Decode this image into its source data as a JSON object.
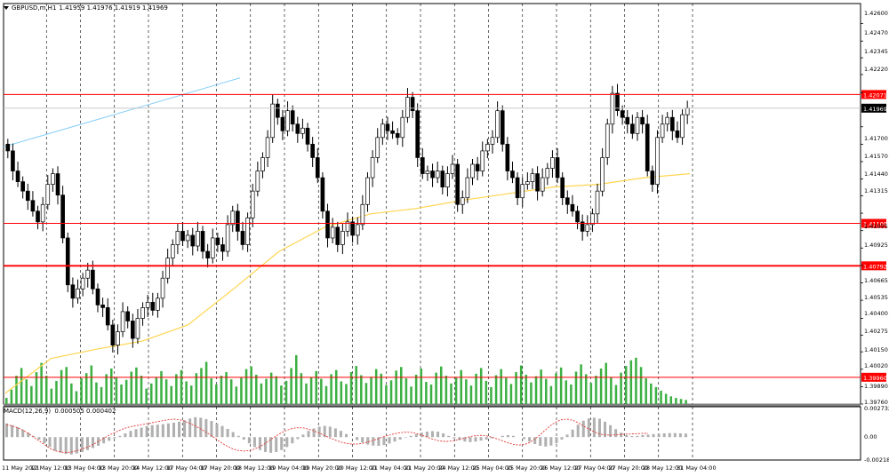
{
  "window": {
    "symbol": "GBPUSD,m,H1",
    "ohlc": "1.41959 1.41976 1.41919 1.41969"
  },
  "macd_panel": {
    "label": "MACD(12,26,9)",
    "values": "0.000505 0.000402",
    "scale_labels": [
      "0.002732",
      "0.00",
      "-0.002188"
    ]
  },
  "colors": {
    "background": "#ffffff",
    "bull_candle": "#000000",
    "bear_candle": "#000000",
    "level_line": "#ff0000",
    "ma_line": "#ffd54f",
    "trend_line": "#87cefa",
    "volume": "#3cb043",
    "macd_hist": "#b0b0b0",
    "macd_signal": "#e53935",
    "grid": "#000000"
  },
  "chart_data": {
    "type": "candlestick",
    "ylim": [
      1.3976,
      1.4275
    ],
    "price_labels": [
      "1.42600",
      "1.42470",
      "1.42345",
      "1.42220",
      "1.42071",
      "1.41969",
      "1.41700",
      "1.41570",
      "1.41440",
      "1.41315",
      "1.41109",
      "1.41055",
      "1.40925",
      "1.40792",
      "1.40665",
      "1.40535",
      "1.40400",
      "1.40275",
      "1.40150",
      "1.40020",
      "1.39960",
      "1.39890",
      "1.39760"
    ],
    "price_ticks": [
      1.426,
      1.4247,
      1.42345,
      1.4222,
      1.42085,
      1.4183,
      1.417,
      1.4157,
      1.4144,
      1.41315,
      1.41185,
      1.41055,
      1.40925,
      1.40795,
      1.40665,
      1.40535,
      1.404,
      1.40275,
      1.4015,
      1.4002,
      1.3989,
      1.3976
    ],
    "time_labels": [
      "11 May 2021",
      "12 May 12:00",
      "13 May 04:00",
      "13 May 20:00",
      "14 May 12:00",
      "17 May 04:00",
      "17 May 20:00",
      "18 May 12:00",
      "19 May 04:00",
      "19 May 20:00",
      "20 May 12:00",
      "21 May 04:00",
      "21 May 20:00",
      "24 May 12:00",
      "25 May 04:00",
      "25 May 20:00",
      "26 May 12:00",
      "27 May 04:00",
      "27 May 20:00",
      "28 May 12:00",
      "31 May 04:00"
    ],
    "levels": [
      {
        "label": "1.42071",
        "value": 1.42071,
        "bold": false
      },
      {
        "label": "1.41109",
        "value": 1.41109,
        "bold": false
      },
      {
        "label": "1.40792",
        "value": 1.40792,
        "bold": true
      },
      {
        "label": "1.39960",
        "value": 1.3996,
        "bold": false
      }
    ],
    "current_price": {
      "label": "1.41969",
      "value": 1.41969
    },
    "closes": [
      1.4165,
      1.415,
      1.4142,
      1.4135,
      1.4128,
      1.412,
      1.4112,
      1.4125,
      1.414,
      1.4148,
      1.4132,
      1.41,
      1.4065,
      1.4055,
      1.4062,
      1.407,
      1.4076,
      1.4062,
      1.405,
      1.4048,
      1.4035,
      1.402,
      1.403,
      1.4045,
      1.4038,
      1.4025,
      1.404,
      1.4048,
      1.4052,
      1.4046,
      1.4055,
      1.407,
      1.4085,
      1.4095,
      1.4105,
      1.4098,
      1.4102,
      1.4094,
      1.4105,
      1.409,
      1.4085,
      1.41,
      1.4095,
      1.409,
      1.411,
      1.412,
      1.4105,
      1.4095,
      1.4115,
      1.4135,
      1.415,
      1.416,
      1.4175,
      1.42,
      1.419,
      1.418,
      1.4195,
      1.4185,
      1.4178,
      1.4182,
      1.417,
      1.416,
      1.4145,
      1.412,
      1.41,
      1.4108,
      1.4095,
      1.4105,
      1.4112,
      1.4102,
      1.411,
      1.4125,
      1.4145,
      1.416,
      1.4175,
      1.4185,
      1.418,
      1.4178,
      1.4175,
      1.419,
      1.4205,
      1.4195,
      1.416,
      1.4148,
      1.415,
      1.4145,
      1.415,
      1.4138,
      1.4148,
      1.4155,
      1.4125,
      1.413,
      1.4145,
      1.4155,
      1.415,
      1.4165,
      1.417,
      1.4175,
      1.4195,
      1.417,
      1.415,
      1.4145,
      1.413,
      1.414,
      1.4142,
      1.4148,
      1.4135,
      1.4145,
      1.4152,
      1.416,
      1.4145,
      1.413,
      1.4125,
      1.412,
      1.4112,
      1.4105,
      1.411,
      1.4118,
      1.4135,
      1.416,
      1.4185,
      1.4208,
      1.4195,
      1.419,
      1.4185,
      1.4178,
      1.419,
      1.4185,
      1.415,
      1.414,
      1.4175,
      1.4185,
      1.419,
      1.418,
      1.4175,
      1.4192,
      1.4197
    ],
    "ma": [
      1.3984,
      1.401,
      1.4017,
      1.4023,
      1.4035,
      1.4062,
      1.409,
      1.4108,
      1.4118,
      1.4122,
      1.4128,
      1.4133,
      1.4138,
      1.414,
      1.4145,
      1.4148
    ],
    "volume": [
      0.12,
      0.28,
      0.55,
      0.7,
      0.48,
      0.35,
      0.62,
      0.8,
      0.55,
      0.3,
      0.45,
      0.66,
      0.72,
      0.4,
      0.25,
      0.5,
      0.6,
      0.75,
      0.42,
      0.33,
      0.58,
      0.69,
      0.52,
      0.38,
      0.47,
      0.63,
      0.71,
      0.55,
      0.3,
      0.4,
      0.52,
      0.64,
      0.48,
      0.35,
      0.58,
      0.66,
      0.44,
      0.36,
      0.6,
      0.7,
      0.82,
      0.5,
      0.38,
      0.55,
      0.62,
      0.48,
      0.34,
      0.51,
      0.68,
      0.73,
      0.57,
      0.4,
      0.49,
      0.61,
      0.54,
      0.36,
      0.45,
      0.7,
      0.95,
      0.6,
      0.4,
      0.52,
      0.64,
      0.49,
      0.35,
      0.58,
      0.66,
      0.44,
      0.39,
      0.62,
      0.74,
      0.56,
      0.41,
      0.53,
      0.68,
      0.59,
      0.37,
      0.46,
      0.65,
      0.72,
      0.5,
      0.34,
      0.57,
      0.69,
      0.43,
      0.38,
      0.61,
      0.73,
      0.55,
      0.4,
      0.52,
      0.66,
      0.48,
      0.36,
      0.59,
      0.7,
      0.45,
      0.33,
      0.56,
      0.68,
      0.51,
      0.39,
      0.62,
      0.75,
      0.57,
      0.42,
      0.54,
      0.67,
      0.49,
      0.35,
      0.6,
      0.71,
      0.46,
      0.38,
      0.63,
      0.77,
      0.58,
      0.41,
      0.55,
      0.69,
      0.8,
      0.52,
      0.37,
      0.61,
      0.74,
      0.85,
      0.9,
      0.72,
      0.5,
      0.4,
      0.33,
      0.26,
      0.2,
      0.15,
      0.12,
      0.1,
      0.08
    ],
    "macd_hist": [
      0.55,
      0.48,
      0.4,
      0.3,
      0.18,
      0.05,
      -0.1,
      -0.25,
      -0.4,
      -0.55,
      -0.62,
      -0.68,
      -0.7,
      -0.66,
      -0.6,
      -0.52,
      -0.44,
      -0.35,
      -0.25,
      -0.15,
      -0.05,
      0.05,
      0.15,
      0.25,
      0.32,
      0.38,
      0.44,
      0.48,
      0.5,
      0.52,
      0.55,
      0.58,
      0.62,
      0.68,
      0.75,
      0.8,
      0.78,
      0.72,
      0.65,
      0.55,
      0.45,
      0.33,
      0.2,
      0.05,
      -0.1,
      -0.25,
      -0.4,
      -0.52,
      -0.6,
      -0.63,
      -0.6,
      -0.52,
      -0.4,
      -0.25,
      -0.08,
      0.1,
      0.25,
      0.35,
      0.42,
      0.45,
      0.42,
      0.35,
      0.25,
      0.12,
      0.0,
      -0.12,
      -0.22,
      -0.3,
      -0.34,
      -0.35,
      -0.32,
      -0.26,
      -0.18,
      -0.1,
      -0.02,
      0.05,
      0.12,
      0.18,
      0.22,
      0.24,
      0.22,
      0.15,
      0.05,
      -0.05,
      -0.12,
      -0.18,
      -0.2,
      -0.18,
      -0.14,
      -0.1,
      -0.05,
      0.0,
      0.05,
      0.08,
      0.05,
      0.0,
      -0.08,
      -0.18,
      -0.28,
      -0.35,
      -0.38,
      -0.34,
      -0.25,
      -0.1,
      0.1,
      0.3,
      0.5,
      0.66,
      0.75,
      0.78,
      0.74,
      0.62,
      0.48,
      0.32,
      0.18,
      0.08,
      0.04,
      0.05,
      0.08,
      0.1,
      0.12,
      0.14,
      0.15,
      0.16,
      0.16,
      0.15,
      0.14
    ],
    "macd_signal": [
      0.5,
      0.45,
      0.38,
      0.28,
      0.15,
      0.0,
      -0.15,
      -0.3,
      -0.45,
      -0.55,
      -0.6,
      -0.62,
      -0.6,
      -0.55,
      -0.48,
      -0.4,
      -0.3,
      -0.18,
      -0.05,
      0.08,
      0.18,
      0.28,
      0.36,
      0.42,
      0.46,
      0.5,
      0.54,
      0.58,
      0.62,
      0.66,
      0.7,
      0.72,
      0.7,
      0.64,
      0.55,
      0.45,
      0.33,
      0.2,
      0.06,
      -0.1,
      -0.25,
      -0.38,
      -0.48,
      -0.54,
      -0.56,
      -0.54,
      -0.48,
      -0.38,
      -0.25,
      -0.1,
      0.05,
      0.18,
      0.28,
      0.35,
      0.38,
      0.37,
      0.32,
      0.25,
      0.16,
      0.06,
      -0.04,
      -0.12,
      -0.2,
      -0.25,
      -0.28,
      -0.28,
      -0.25,
      -0.2,
      -0.13,
      -0.06,
      0.02,
      0.08,
      0.14,
      0.18,
      0.2,
      0.19,
      0.15,
      0.08,
      0.0,
      -0.08,
      -0.14,
      -0.17,
      -0.17,
      -0.14,
      -0.09,
      -0.04,
      0.02,
      0.06,
      0.07,
      0.05,
      0.0,
      -0.07,
      -0.15,
      -0.23,
      -0.29,
      -0.32,
      -0.3,
      -0.22,
      -0.08,
      0.1,
      0.3,
      0.48,
      0.62,
      0.7,
      0.72,
      0.68,
      0.58,
      0.45,
      0.32,
      0.21,
      0.13,
      0.09,
      0.08,
      0.09,
      0.11,
      0.12,
      0.13,
      0.14,
      0.15,
      0.15
    ]
  }
}
